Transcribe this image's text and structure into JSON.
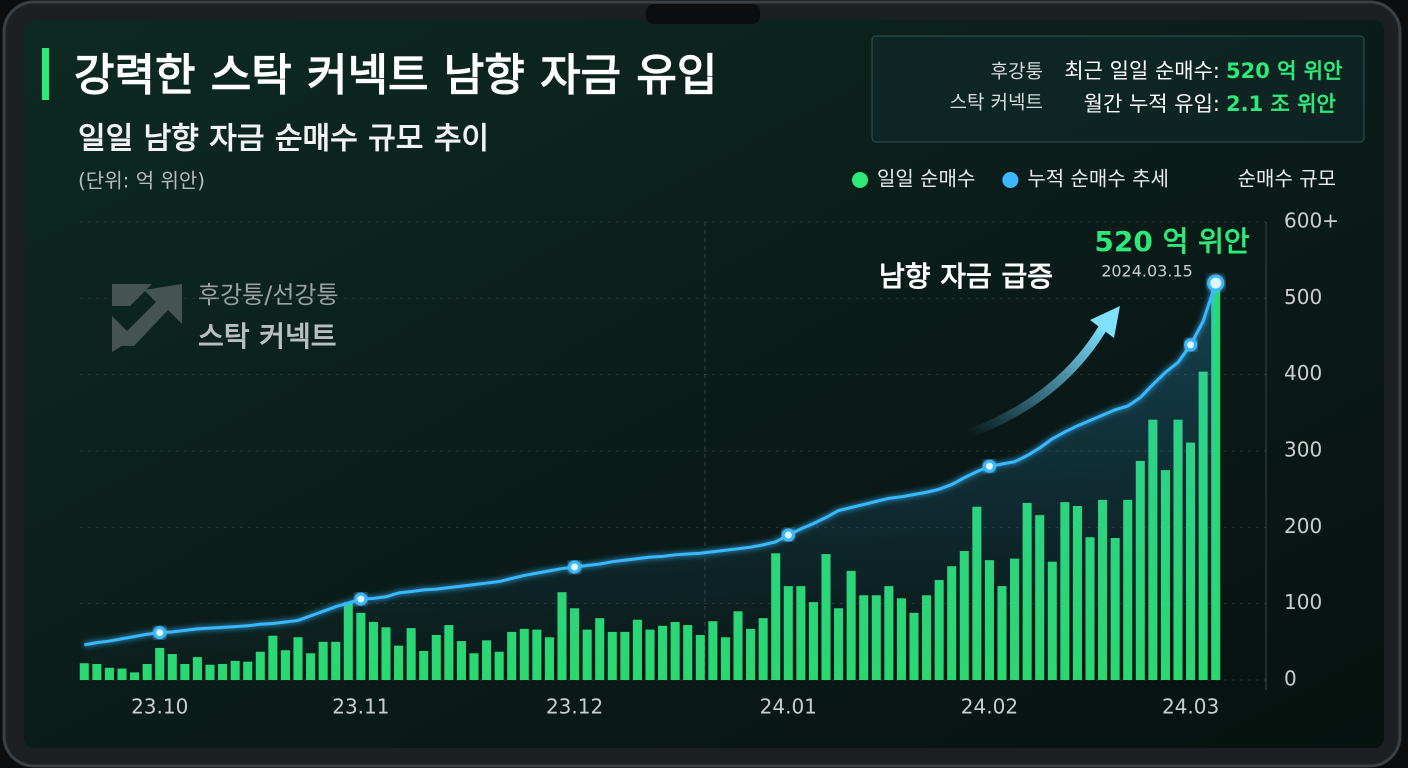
{
  "header": {
    "title": "강력한 스탁 커넥트 남향 자금 유입",
    "subtitle": "일일 남향 자금 순매수 규모 추이",
    "unit": "(단위: 억 위안)"
  },
  "logo": {
    "line1": "후강퉁/선강퉁",
    "line2": "스탁 커넥트"
  },
  "stats": {
    "tag1": "후강퉁",
    "tag2": "스탁 커넥트",
    "rows": [
      {
        "label": "최근 일일 순매수:",
        "value": "520 억 위안"
      },
      {
        "label": "월간 누적 유입:",
        "value": "2.1 조 위안"
      }
    ]
  },
  "chart_data": {
    "type": "bar",
    "y_axis_title": "순매수 규모",
    "annotations": {
      "peak_value": "520 억 위안",
      "peak_date": "2024.03.15",
      "callout": "남향 자금 급증"
    },
    "categories": [
      null,
      null,
      null,
      null,
      null,
      null,
      "23.10",
      null,
      null,
      null,
      null,
      null,
      null,
      null,
      null,
      null,
      null,
      null,
      null,
      null,
      null,
      null,
      "23.11",
      null,
      null,
      null,
      null,
      null,
      null,
      null,
      null,
      null,
      null,
      null,
      null,
      null,
      null,
      null,
      null,
      "23.12",
      null,
      null,
      null,
      null,
      null,
      null,
      null,
      null,
      null,
      null,
      null,
      null,
      null,
      null,
      null,
      null,
      "24.01",
      null,
      null,
      null,
      null,
      null,
      null,
      null,
      null,
      null,
      null,
      null,
      null,
      null,
      null,
      null,
      "24.02",
      null,
      null,
      null,
      null,
      null,
      null,
      null,
      null,
      null,
      null,
      null,
      null,
      null,
      null,
      null,
      "24.03",
      null,
      null
    ],
    "series": [
      {
        "name": "일일 순매수",
        "type": "bar",
        "color": "#2ee87a",
        "values": [
          22,
          21,
          16,
          15,
          10,
          21,
          42,
          34,
          21,
          30,
          20,
          21,
          25,
          24,
          37,
          58,
          39,
          56,
          35,
          50,
          50,
          102,
          88,
          76,
          69,
          45,
          68,
          38,
          59,
          72,
          51,
          35,
          52,
          37,
          63,
          67,
          66,
          56,
          115,
          94,
          66,
          81,
          63,
          63,
          79,
          66,
          71,
          76,
          72,
          59,
          77,
          56,
          90,
          67,
          81,
          166,
          123,
          123,
          102,
          165,
          94,
          143,
          111,
          111,
          123,
          107,
          88,
          111,
          131,
          149,
          169,
          227,
          157,
          123,
          159,
          232,
          216,
          155,
          233,
          228,
          187,
          236,
          186,
          236,
          287,
          341,
          275,
          341,
          311,
          404,
          520
        ]
      },
      {
        "name": "누적 순매수 추세",
        "type": "line",
        "color": "#39b8ff",
        "values": [
          46,
          49,
          51,
          54,
          57,
          60,
          62,
          63,
          65,
          67,
          68,
          69,
          70,
          71,
          73,
          74,
          76,
          78,
          84,
          90,
          96,
          101,
          106,
          107,
          109,
          114,
          116,
          118,
          119,
          121,
          123,
          125,
          127,
          129,
          133,
          137,
          140,
          143,
          146,
          148,
          150,
          152,
          155,
          157,
          159,
          161,
          162,
          164,
          165,
          166,
          168,
          170,
          172,
          174,
          177,
          181,
          190,
          198,
          205,
          213,
          222,
          226,
          230,
          234,
          238,
          240,
          243,
          246,
          250,
          256,
          265,
          273,
          280,
          283,
          286,
          294,
          304,
          316,
          325,
          333,
          340,
          347,
          354,
          359,
          370,
          387,
          403,
          416,
          439,
          470,
          520
        ]
      }
    ],
    "ylim": [
      0,
      600
    ],
    "yticks": [
      0,
      100,
      200,
      300,
      400,
      500,
      {
        "value": 600,
        "label": "600+"
      }
    ],
    "grid": true
  }
}
